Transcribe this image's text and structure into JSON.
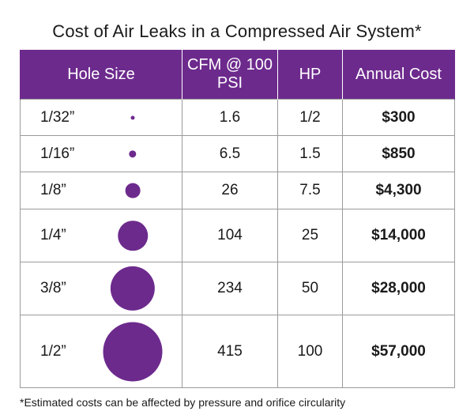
{
  "title": "Cost of Air Leaks in a Compressed Air System*",
  "table": {
    "headers": [
      "Hole Size",
      "CFM @ 100 PSI",
      "HP",
      "Annual Cost"
    ],
    "rows": [
      {
        "size": "1/32”",
        "cfm": "1.6",
        "hp": "1/2",
        "cost": "$300",
        "dot_diameter_in": 0.03125
      },
      {
        "size": "1/16”",
        "cfm": "6.5",
        "hp": "1.5",
        "cost": "$850",
        "dot_diameter_in": 0.0625
      },
      {
        "size": "1/8”",
        "cfm": "26",
        "hp": "7.5",
        "cost": "$4,300",
        "dot_diameter_in": 0.125
      },
      {
        "size": "1/4”",
        "cfm": "104",
        "hp": "25",
        "cost": "$14,000",
        "dot_diameter_in": 0.25
      },
      {
        "size": "3/8”",
        "cfm": "234",
        "hp": "50",
        "cost": "$28,000",
        "dot_diameter_in": 0.375
      },
      {
        "size": "1/2”",
        "cfm": "415",
        "hp": "100",
        "cost": "$57,000",
        "dot_diameter_in": 0.5
      }
    ]
  },
  "footnote": "*Estimated costs can be affected by pressure and orifice circularity",
  "colors": {
    "accent": "#6d2a8d",
    "border": "#9a9a9a",
    "text": "#1a1a1a"
  }
}
